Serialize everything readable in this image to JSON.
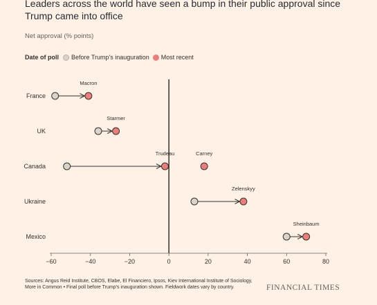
{
  "title": "Leaders across the world have seen a bump in their public approval since Trump came into office",
  "subtitle": "Net approval (% points)",
  "legend": {
    "title": "Date of poll",
    "items": [
      {
        "label": "Before Trump's inauguration",
        "color": "#d9d3cc"
      },
      {
        "label": "Most recent",
        "color": "#e87f7b"
      }
    ]
  },
  "chart_data": {
    "type": "dumbbell",
    "title": "Leaders across the world have seen a bump in their public approval since Trump came into office",
    "xlabel": "Net approval (% points)",
    "xlim": [
      -60,
      80
    ],
    "xticks": [
      -60,
      -40,
      -20,
      0,
      20,
      40,
      60,
      80
    ],
    "grid": false,
    "legend_position": "top-left",
    "series": [
      {
        "name": "Before Trump's inauguration",
        "color": "#d9d3cc"
      },
      {
        "name": "Most recent",
        "color": "#e87f7b"
      }
    ],
    "rows": [
      {
        "country": "France",
        "leader": "Macron",
        "before": -58,
        "recent": -41
      },
      {
        "country": "UK",
        "leader": "Starmer",
        "before": -36,
        "recent": -27
      },
      {
        "country": "Canada",
        "leader": "Trudeau",
        "before": -52,
        "recent": -2,
        "extra": {
          "leader": "Carney",
          "recent": 18
        }
      },
      {
        "country": "Ukraine",
        "leader": "Zelenskyy",
        "before": 13,
        "recent": 38
      },
      {
        "country": "Mexico",
        "leader": "Sheinbaum",
        "before": 60,
        "recent": 70
      }
    ]
  },
  "footer": {
    "source": "Sources: Angus Reid Institute, CBOS, Elabe, El Financiero, Ipsos, Kiev International Institute of Sociology, More in Common • Final poll before Trump's inauguration shown. Fieldwork dates vary by country.",
    "brand": "FINANCIAL TIMES"
  }
}
